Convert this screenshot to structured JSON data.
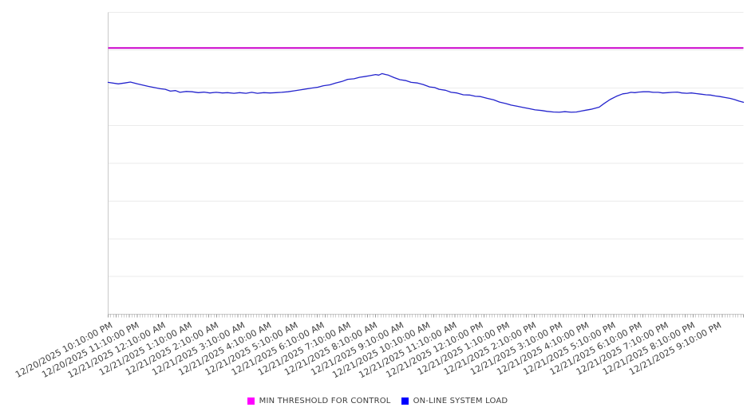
{
  "window": {
    "background": "#ffffff"
  },
  "chart_data": {
    "type": "line",
    "title": "",
    "legend_position": "bottom-center",
    "grid": {
      "horizontal": true,
      "vertical": false
    },
    "x_axis": {
      "tick_labels": [
        "12/20/2025 10:10:00 PM",
        "12/20/2025 11:10:00 PM",
        "12/21/2025 12:10:00 AM",
        "12/21/2025 1:10:00 AM",
        "12/21/2025 2:10:00 AM",
        "12/21/2025 3:10:00 AM",
        "12/21/2025 4:10:00 AM",
        "12/21/2025 5:10:00 AM",
        "12/21/2025 6:10:00 AM",
        "12/21/2025 7:10:00 AM",
        "12/21/2025 8:10:00 AM",
        "12/21/2025 9:10:00 AM",
        "12/21/2025 10:10:00 AM",
        "12/21/2025 11:10:00 AM",
        "12/21/2025 12:10:00 PM",
        "12/21/2025 1:10:00 PM",
        "12/21/2025 2:10:00 PM",
        "12/21/2025 3:10:00 PM",
        "12/21/2025 4:10:00 PM",
        "12/21/2025 5:10:00 PM",
        "12/21/2025 6:10:00 PM",
        "12/21/2025 7:10:00 PM",
        "12/21/2025 8:10:00 PM",
        "12/21/2025 9:10:00 PM"
      ],
      "minor_ticks_per_label": 10,
      "label_rotation_deg": -28
    },
    "y_axis": {
      "labels_visible": false,
      "range": [
        0,
        100
      ],
      "gridline_divisions": 8
    },
    "series": [
      {
        "name": "MIN THRESHOLD FOR CONTROL",
        "type": "threshold",
        "line_color": "#cc00cc",
        "legend_color": "#ff00ff",
        "value": 88.2
      },
      {
        "name": "ON-LINE SYSTEM LOAD",
        "type": "line",
        "line_color": "#2323cd",
        "legend_color": "#0000ff",
        "points": [
          [
            0.0,
            76.8
          ],
          [
            0.016,
            76.3
          ],
          [
            0.026,
            76.6
          ],
          [
            0.035,
            76.9
          ],
          [
            0.046,
            76.3
          ],
          [
            0.063,
            75.5
          ],
          [
            0.082,
            74.7
          ],
          [
            0.09,
            74.5
          ],
          [
            0.098,
            73.9
          ],
          [
            0.106,
            74.1
          ],
          [
            0.113,
            73.5
          ],
          [
            0.123,
            73.8
          ],
          [
            0.132,
            73.7
          ],
          [
            0.142,
            73.4
          ],
          [
            0.151,
            73.6
          ],
          [
            0.16,
            73.3
          ],
          [
            0.17,
            73.5
          ],
          [
            0.18,
            73.3
          ],
          [
            0.188,
            73.4
          ],
          [
            0.198,
            73.2
          ],
          [
            0.207,
            73.4
          ],
          [
            0.217,
            73.2
          ],
          [
            0.226,
            73.5
          ],
          [
            0.235,
            73.2
          ],
          [
            0.245,
            73.4
          ],
          [
            0.255,
            73.3
          ],
          [
            0.264,
            73.4
          ],
          [
            0.273,
            73.5
          ],
          [
            0.283,
            73.7
          ],
          [
            0.293,
            74.0
          ],
          [
            0.302,
            74.3
          ],
          [
            0.32,
            74.9
          ],
          [
            0.33,
            75.2
          ],
          [
            0.339,
            75.7
          ],
          [
            0.349,
            76.0
          ],
          [
            0.358,
            76.6
          ],
          [
            0.368,
            77.1
          ],
          [
            0.377,
            77.8
          ],
          [
            0.387,
            78.0
          ],
          [
            0.396,
            78.5
          ],
          [
            0.403,
            78.7
          ],
          [
            0.411,
            79.0
          ],
          [
            0.421,
            79.4
          ],
          [
            0.426,
            79.2
          ],
          [
            0.431,
            79.7
          ],
          [
            0.437,
            79.4
          ],
          [
            0.441,
            79.2
          ],
          [
            0.45,
            78.4
          ],
          [
            0.459,
            77.7
          ],
          [
            0.469,
            77.4
          ],
          [
            0.477,
            76.8
          ],
          [
            0.487,
            76.6
          ],
          [
            0.496,
            76.1
          ],
          [
            0.506,
            75.3
          ],
          [
            0.514,
            75.1
          ],
          [
            0.521,
            74.5
          ],
          [
            0.531,
            74.2
          ],
          [
            0.54,
            73.5
          ],
          [
            0.549,
            73.3
          ],
          [
            0.559,
            72.7
          ],
          [
            0.569,
            72.6
          ],
          [
            0.578,
            72.2
          ],
          [
            0.586,
            72.1
          ],
          [
            0.597,
            71.5
          ],
          [
            0.607,
            71.0
          ],
          [
            0.616,
            70.3
          ],
          [
            0.626,
            69.8
          ],
          [
            0.634,
            69.3
          ],
          [
            0.644,
            68.9
          ],
          [
            0.653,
            68.5
          ],
          [
            0.663,
            68.1
          ],
          [
            0.672,
            67.7
          ],
          [
            0.682,
            67.5
          ],
          [
            0.691,
            67.2
          ],
          [
            0.701,
            67.0
          ],
          [
            0.71,
            66.9
          ],
          [
            0.719,
            67.1
          ],
          [
            0.729,
            66.9
          ],
          [
            0.737,
            67.0
          ],
          [
            0.745,
            67.3
          ],
          [
            0.752,
            67.6
          ],
          [
            0.76,
            67.9
          ],
          [
            0.766,
            68.2
          ],
          [
            0.773,
            68.6
          ],
          [
            0.78,
            69.7
          ],
          [
            0.79,
            71.1
          ],
          [
            0.8,
            72.2
          ],
          [
            0.81,
            73.0
          ],
          [
            0.817,
            73.2
          ],
          [
            0.823,
            73.5
          ],
          [
            0.829,
            73.4
          ],
          [
            0.835,
            73.6
          ],
          [
            0.843,
            73.7
          ],
          [
            0.851,
            73.7
          ],
          [
            0.858,
            73.5
          ],
          [
            0.866,
            73.5
          ],
          [
            0.873,
            73.3
          ],
          [
            0.881,
            73.4
          ],
          [
            0.888,
            73.5
          ],
          [
            0.896,
            73.6
          ],
          [
            0.903,
            73.3
          ],
          [
            0.911,
            73.2
          ],
          [
            0.918,
            73.3
          ],
          [
            0.926,
            73.1
          ],
          [
            0.933,
            72.9
          ],
          [
            0.941,
            72.7
          ],
          [
            0.948,
            72.6
          ],
          [
            0.956,
            72.3
          ],
          [
            0.963,
            72.1
          ],
          [
            0.971,
            71.8
          ],
          [
            0.979,
            71.5
          ],
          [
            0.986,
            71.1
          ],
          [
            0.993,
            70.6
          ],
          [
            1.0,
            70.2
          ]
        ]
      }
    ]
  }
}
